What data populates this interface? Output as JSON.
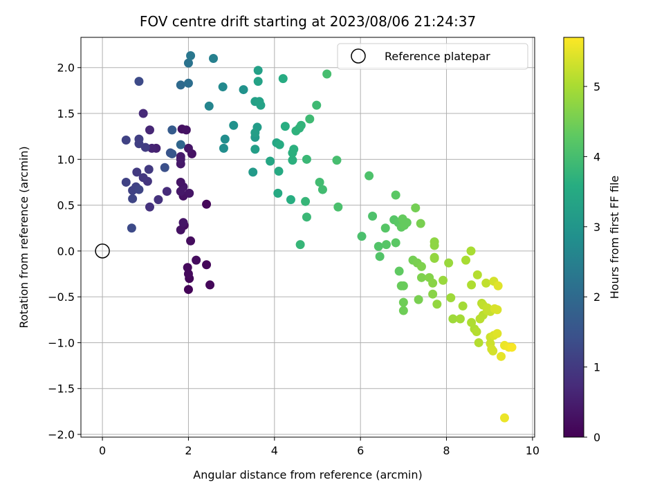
{
  "chart_data": {
    "type": "scatter",
    "title": "FOV centre drift starting at 2023/08/06 21:24:37",
    "xlabel": "Angular distance from reference (arcmin)",
    "ylabel": "Rotation from reference (arcmin)",
    "xlim": [
      -0.5,
      10.05
    ],
    "ylim": [
      -2.03,
      2.33
    ],
    "xticks": [
      0,
      2,
      4,
      6,
      8,
      10
    ],
    "xtick_labels": [
      "0",
      "2",
      "4",
      "6",
      "8",
      "10"
    ],
    "yticks": [
      2.0,
      1.5,
      1.0,
      0.5,
      0.0,
      -0.5,
      -1.0,
      -1.5,
      -2.0
    ],
    "ytick_labels": [
      "2.0",
      "1.5",
      "1.0",
      "0.5",
      "0.0",
      "−0.5",
      "−1.0",
      "−1.5",
      "−2.0"
    ],
    "grid": true,
    "legend": {
      "position": "top-right",
      "entries": [
        "Reference platepar"
      ]
    },
    "reference": {
      "x": 0,
      "y": 0,
      "label": "Reference platepar"
    },
    "colorbar": {
      "label": "Hours from first FF file",
      "range": [
        0,
        5.7
      ],
      "ticks": [
        0,
        1,
        2,
        3,
        4,
        5
      ],
      "tick_labels": [
        "0",
        "1",
        "2",
        "3",
        "4",
        "5"
      ],
      "colormap": "viridis"
    },
    "points": [
      [
        2.0,
        -0.42,
        0.05
      ],
      [
        2.5,
        -0.37,
        0.1
      ],
      [
        2.02,
        -0.3,
        0.1
      ],
      [
        2.0,
        -0.25,
        0.15
      ],
      [
        2.42,
        -0.15,
        0.1
      ],
      [
        1.98,
        -0.18,
        0.15
      ],
      [
        2.18,
        -0.1,
        0.2
      ],
      [
        2.05,
        0.11,
        0.2
      ],
      [
        1.9,
        0.28,
        0.2
      ],
      [
        1.82,
        0.23,
        0.3
      ],
      [
        1.88,
        0.31,
        0.35
      ],
      [
        2.42,
        0.51,
        0.1
      ],
      [
        1.88,
        0.6,
        0.3
      ],
      [
        2.02,
        0.63,
        0.35
      ],
      [
        1.82,
        0.65,
        0.4
      ],
      [
        1.88,
        0.7,
        0.4
      ],
      [
        1.82,
        0.75,
        0.35
      ],
      [
        1.82,
        0.95,
        0.4
      ],
      [
        1.82,
        1.0,
        0.45
      ],
      [
        1.82,
        1.03,
        0.45
      ],
      [
        2.08,
        1.06,
        0.3
      ],
      [
        2.0,
        1.12,
        0.35
      ],
      [
        1.85,
        1.33,
        0.25
      ],
      [
        1.95,
        1.32,
        0.3
      ],
      [
        1.25,
        1.12,
        0.55
      ],
      [
        1.15,
        1.12,
        0.6
      ],
      [
        1.1,
        1.32,
        0.65
      ],
      [
        0.95,
        1.5,
        0.7
      ],
      [
        1.5,
        0.65,
        0.75
      ],
      [
        1.3,
        0.56,
        0.85
      ],
      [
        1.1,
        0.48,
        0.85
      ],
      [
        1.05,
        0.76,
        0.9
      ],
      [
        0.95,
        0.8,
        0.95
      ],
      [
        0.8,
        0.86,
        1.0
      ],
      [
        1.08,
        0.89,
        1.0
      ],
      [
        1.0,
        1.13,
        1.05
      ],
      [
        0.85,
        1.17,
        1.1
      ],
      [
        0.85,
        1.22,
        1.1
      ],
      [
        0.55,
        1.21,
        1.15
      ],
      [
        0.55,
        0.75,
        1.15
      ],
      [
        0.7,
        0.66,
        1.15
      ],
      [
        0.78,
        0.7,
        1.15
      ],
      [
        0.85,
        0.67,
        1.2
      ],
      [
        0.7,
        0.57,
        1.2
      ],
      [
        0.68,
        0.25,
        1.3
      ],
      [
        0.85,
        1.85,
        1.3
      ],
      [
        1.45,
        0.91,
        1.4
      ],
      [
        1.58,
        1.07,
        1.5
      ],
      [
        1.62,
        1.06,
        1.55
      ],
      [
        1.62,
        1.32,
        1.65
      ],
      [
        1.82,
        1.16,
        1.9
      ],
      [
        1.82,
        1.81,
        2.0
      ],
      [
        2.0,
        1.83,
        2.1
      ],
      [
        2.0,
        2.05,
        2.2
      ],
      [
        2.05,
        2.13,
        2.3
      ],
      [
        2.58,
        2.1,
        2.5
      ],
      [
        2.48,
        1.58,
        2.6
      ],
      [
        2.8,
        1.79,
        2.7
      ],
      [
        2.85,
        1.22,
        2.8
      ],
      [
        2.82,
        1.12,
        2.8
      ],
      [
        3.05,
        1.37,
        2.9
      ],
      [
        3.28,
        1.76,
        2.9
      ],
      [
        3.5,
        0.86,
        3.1
      ],
      [
        3.55,
        1.24,
        3.1
      ],
      [
        3.6,
        1.35,
        3.15
      ],
      [
        3.55,
        1.11,
        3.2
      ],
      [
        3.55,
        1.29,
        3.2
      ],
      [
        3.55,
        1.63,
        3.25
      ],
      [
        3.62,
        1.97,
        3.25
      ],
      [
        3.62,
        1.85,
        3.3
      ],
      [
        3.65,
        1.63,
        3.3
      ],
      [
        3.68,
        1.59,
        3.3
      ],
      [
        3.9,
        0.98,
        3.4
      ],
      [
        4.05,
        1.18,
        3.4
      ],
      [
        4.08,
        0.63,
        3.5
      ],
      [
        4.1,
        0.87,
        3.5
      ],
      [
        4.12,
        1.16,
        3.55
      ],
      [
        4.2,
        1.88,
        3.55
      ],
      [
        4.25,
        1.36,
        3.6
      ],
      [
        4.38,
        0.56,
        3.6
      ],
      [
        4.42,
        1.07,
        3.65
      ],
      [
        4.42,
        0.99,
        3.65
      ],
      [
        4.45,
        1.11,
        3.65
      ],
      [
        4.5,
        1.31,
        3.7
      ],
      [
        4.58,
        1.34,
        3.7
      ],
      [
        4.62,
        1.37,
        3.75
      ],
      [
        4.6,
        0.07,
        3.8
      ],
      [
        4.72,
        0.54,
        3.8
      ],
      [
        4.75,
        0.37,
        3.85
      ],
      [
        4.75,
        1.0,
        3.85
      ],
      [
        4.82,
        1.44,
        3.9
      ],
      [
        4.98,
        1.59,
        3.9
      ],
      [
        5.05,
        0.75,
        3.95
      ],
      [
        5.12,
        0.67,
        3.95
      ],
      [
        5.22,
        1.93,
        4.0
      ],
      [
        5.45,
        0.99,
        4.0
      ],
      [
        5.48,
        0.48,
        4.05
      ],
      [
        6.03,
        0.16,
        4.05
      ],
      [
        6.2,
        0.82,
        4.1
      ],
      [
        6.28,
        0.38,
        4.1
      ],
      [
        6.42,
        0.05,
        4.15
      ],
      [
        6.45,
        -0.06,
        4.15
      ],
      [
        6.58,
        0.25,
        4.2
      ],
      [
        6.6,
        0.07,
        4.2
      ],
      [
        6.78,
        0.34,
        4.2
      ],
      [
        6.82,
        0.61,
        4.25
      ],
      [
        6.82,
        0.09,
        4.25
      ],
      [
        6.88,
        0.31,
        4.25
      ],
      [
        6.9,
        -0.22,
        4.3
      ],
      [
        6.95,
        0.26,
        4.3
      ],
      [
        7.0,
        0.32,
        4.3
      ],
      [
        6.98,
        0.35,
        4.35
      ],
      [
        7.02,
        0.28,
        4.35
      ],
      [
        7.08,
        0.31,
        4.35
      ],
      [
        6.95,
        -0.38,
        4.4
      ],
      [
        7.0,
        -0.38,
        4.4
      ],
      [
        7.0,
        -0.56,
        4.45
      ],
      [
        7.0,
        -0.65,
        4.45
      ],
      [
        7.22,
        -0.1,
        4.5
      ],
      [
        7.28,
        0.47,
        4.5
      ],
      [
        7.32,
        -0.13,
        4.55
      ],
      [
        7.35,
        -0.53,
        4.55
      ],
      [
        7.4,
        0.3,
        4.55
      ],
      [
        7.42,
        -0.17,
        4.6
      ],
      [
        7.42,
        -0.29,
        4.6
      ],
      [
        7.6,
        -0.29,
        4.65
      ],
      [
        7.68,
        -0.35,
        4.7
      ],
      [
        7.68,
        -0.47,
        4.7
      ],
      [
        7.72,
        0.1,
        4.75
      ],
      [
        7.72,
        0.06,
        4.75
      ],
      [
        7.72,
        -0.07,
        4.8
      ],
      [
        7.72,
        -0.08,
        4.8
      ],
      [
        7.78,
        -0.58,
        4.8
      ],
      [
        7.92,
        -0.32,
        4.85
      ],
      [
        8.05,
        -0.13,
        4.85
      ],
      [
        8.1,
        -0.51,
        4.9
      ],
      [
        8.15,
        -0.74,
        4.9
      ],
      [
        8.32,
        -0.74,
        4.95
      ],
      [
        8.38,
        -0.6,
        4.95
      ],
      [
        8.45,
        -0.1,
        5.0
      ],
      [
        8.57,
        0.0,
        5.0
      ],
      [
        8.58,
        -0.37,
        5.05
      ],
      [
        8.58,
        -0.78,
        5.05
      ],
      [
        8.65,
        -0.85,
        5.05
      ],
      [
        8.7,
        -0.88,
        5.1
      ],
      [
        8.72,
        -0.26,
        5.1
      ],
      [
        8.75,
        -1.0,
        5.1
      ],
      [
        8.78,
        -0.74,
        5.15
      ],
      [
        8.82,
        -0.57,
        5.15
      ],
      [
        8.85,
        -0.7,
        5.15
      ],
      [
        8.85,
        -0.59,
        5.2
      ],
      [
        8.92,
        -0.35,
        5.2
      ],
      [
        8.95,
        -0.65,
        5.25
      ],
      [
        8.95,
        -0.62,
        5.25
      ],
      [
        9.02,
        -0.66,
        5.25
      ],
      [
        9.02,
        -1.01,
        5.3
      ],
      [
        9.02,
        -0.94,
        5.3
      ],
      [
        9.05,
        -1.07,
        5.35
      ],
      [
        9.08,
        -1.09,
        5.35
      ],
      [
        9.1,
        -0.33,
        5.35
      ],
      [
        9.1,
        -0.92,
        5.4
      ],
      [
        9.12,
        -0.63,
        5.4
      ],
      [
        9.18,
        -0.64,
        5.4
      ],
      [
        9.18,
        -0.9,
        5.45
      ],
      [
        9.2,
        -0.38,
        5.45
      ],
      [
        9.27,
        -1.15,
        5.5
      ],
      [
        9.35,
        -1.03,
        5.55
      ],
      [
        9.35,
        -1.82,
        5.55
      ],
      [
        9.45,
        -1.05,
        5.6
      ],
      [
        9.52,
        -1.05,
        5.65
      ]
    ]
  }
}
